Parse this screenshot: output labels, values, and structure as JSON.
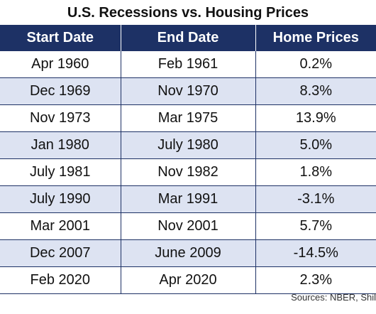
{
  "title": "U.S. Recessions vs. Housing Prices",
  "headers": [
    "Start Date",
    "End Date",
    "Home Prices"
  ],
  "rows": [
    [
      "Apr 1960",
      "Feb 1961",
      "0.2%"
    ],
    [
      "Dec 1969",
      "Nov 1970",
      "8.3%"
    ],
    [
      "Nov 1973",
      "Mar 1975",
      "13.9%"
    ],
    [
      "Jan 1980",
      "July 1980",
      "5.0%"
    ],
    [
      "July 1981",
      "Nov 1982",
      "1.8%"
    ],
    [
      "July 1990",
      "Mar 1991",
      "-3.1%"
    ],
    [
      "Mar 2001",
      "Nov 2001",
      "5.7%"
    ],
    [
      "Dec 2007",
      "June 2009",
      "-14.5%"
    ],
    [
      "Feb 2020",
      "Apr 2020",
      "2.3%"
    ]
  ],
  "source": "Sources: NBER, Shil",
  "colors": {
    "header_bg": "#1d3165",
    "row_shade": "#dde3f2"
  }
}
